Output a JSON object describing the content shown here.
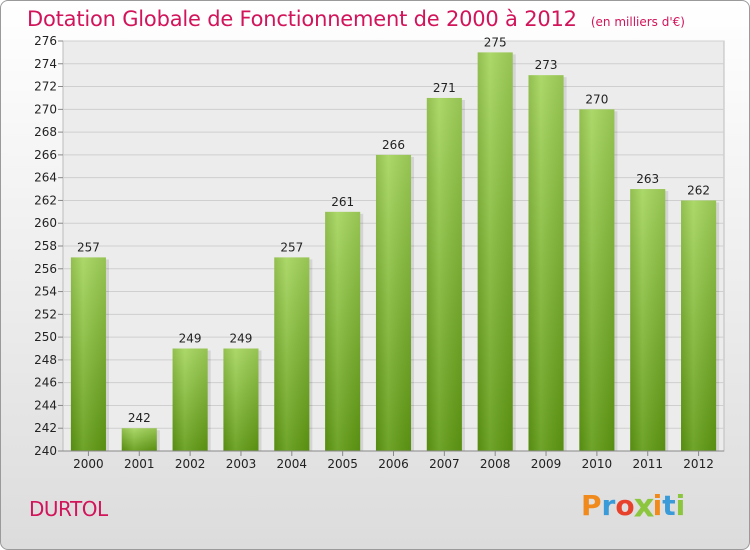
{
  "chart_data": {
    "type": "bar",
    "title": "Dotation Globale de Fonctionnement de 2000 à 2012",
    "subtitle": "(en milliers d'€)",
    "categories": [
      "2000",
      "2001",
      "2002",
      "2003",
      "2004",
      "2005",
      "2006",
      "2007",
      "2008",
      "2009",
      "2010",
      "2011",
      "2012"
    ],
    "values": [
      257,
      242,
      249,
      249,
      257,
      261,
      266,
      271,
      275,
      273,
      270,
      263,
      262
    ],
    "data_labels": [
      "257",
      "242",
      "249",
      "249",
      "257",
      "261",
      "266",
      "271",
      "275",
      "273",
      "270",
      "263",
      "262"
    ],
    "y_ticks": [
      "240",
      "242",
      "244",
      "246",
      "248",
      "250",
      "252",
      "254",
      "256",
      "258",
      "260",
      "262",
      "264",
      "266",
      "268",
      "270",
      "272",
      "274",
      "276"
    ],
    "ylim": [
      240,
      276
    ],
    "grid": true,
    "bar_color_top": "#a3d45a",
    "bar_color_bottom": "#5f9a12"
  },
  "footer": {
    "city": "DURTOL",
    "logo": "Proxiti",
    "logo_colors": [
      "#f08a1c",
      "#3a9bd8",
      "#e8412b",
      "#8cc63f",
      "#f08a1c",
      "#3a9bd8",
      "#8cc63f"
    ]
  },
  "colors": {
    "accent": "#d2145a",
    "grid": "#cfcfcf",
    "axis_text": "#222222"
  }
}
